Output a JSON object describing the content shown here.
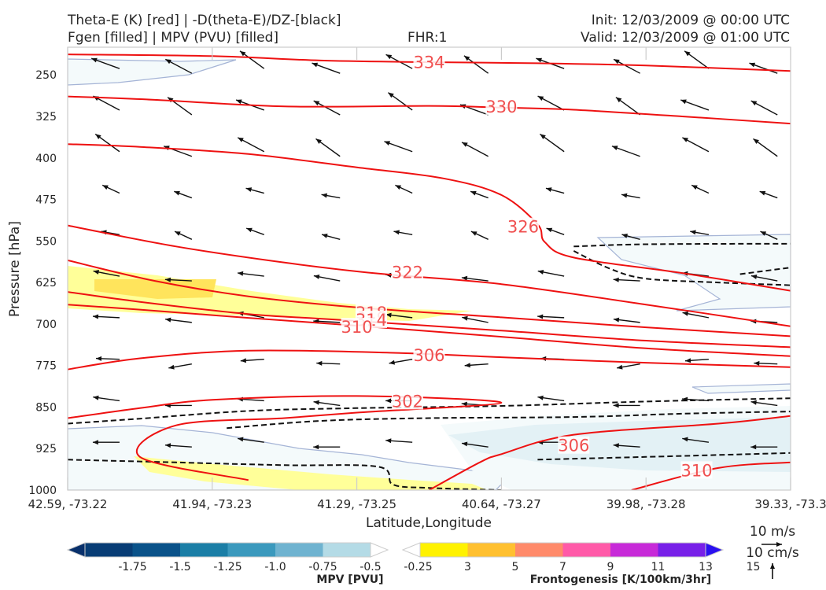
{
  "header": {
    "title_left_1": "Theta-E (K) [red] | -D(theta-E)/DZ-[black]",
    "title_left_2": "Fgen [filled] | MPV (PVU) [filled]",
    "fhr": "FHR:1",
    "init": "Init: 12/03/2009 @ 00:00 UTC",
    "valid": "Valid: 12/03/2009 @ 01:00 UTC"
  },
  "chart_data": {
    "type": "cross-section",
    "xlabel": "Latitude,Longitude",
    "ylabel": "Pressure [hPa]",
    "x_ticks": [
      "42.59, -73.22",
      "41.94, -73.23",
      "41.29, -73.25",
      "40.64, -73.27",
      "39.98, -73.28",
      "39.33, -73.3"
    ],
    "y_ticks": [
      "250",
      "325",
      "400",
      "475",
      "550",
      "625",
      "700",
      "775",
      "850",
      "925",
      "1000"
    ],
    "ylim": [
      1000,
      200
    ],
    "theta_e_contours": [
      {
        "label": "334",
        "points": [
          [
            0,
            213
          ],
          [
            0.2,
            216
          ],
          [
            0.35,
            224
          ],
          [
            0.5,
            227
          ],
          [
            0.65,
            229
          ],
          [
            0.8,
            233
          ],
          [
            1,
            243
          ]
        ]
      },
      {
        "label": "330",
        "points": [
          [
            0,
            289
          ],
          [
            0.12,
            295
          ],
          [
            0.3,
            307
          ],
          [
            0.5,
            306
          ],
          [
            0.6,
            309
          ],
          [
            0.7,
            313
          ],
          [
            0.85,
            325
          ],
          [
            1,
            338
          ]
        ]
      },
      {
        "label": "326",
        "points": [
          [
            0,
            375
          ],
          [
            0.1,
            380
          ],
          [
            0.25,
            393
          ],
          [
            0.4,
            417
          ],
          [
            0.52,
            437
          ],
          [
            0.6,
            467
          ],
          [
            0.65,
            520
          ],
          [
            0.66,
            552
          ],
          [
            0.7,
            580
          ],
          [
            0.85,
            608
          ],
          [
            1,
            640
          ]
        ]
      },
      {
        "label": "322",
        "points": [
          [
            0,
            522
          ],
          [
            0.15,
            560
          ],
          [
            0.3,
            589
          ],
          [
            0.43,
            609
          ],
          [
            0.6,
            628
          ],
          [
            0.8,
            665
          ],
          [
            1,
            704
          ]
        ]
      },
      {
        "label": "318",
        "points": [
          [
            0,
            585
          ],
          [
            0.12,
            622
          ],
          [
            0.25,
            650
          ],
          [
            0.4,
            670
          ],
          [
            0.6,
            688
          ],
          [
            0.8,
            706
          ],
          [
            1,
            722
          ]
        ]
      },
      {
        "label": "314",
        "points": [
          [
            0,
            642
          ],
          [
            0.1,
            660
          ],
          [
            0.25,
            682
          ],
          [
            0.37,
            692
          ],
          [
            0.6,
            712
          ],
          [
            0.8,
            730
          ],
          [
            1,
            742
          ]
        ]
      },
      {
        "label": "310",
        "points": [
          [
            0,
            665
          ],
          [
            0.1,
            674
          ],
          [
            0.25,
            689
          ],
          [
            0.4,
            703
          ],
          [
            0.6,
            723
          ],
          [
            0.8,
            744
          ],
          [
            1,
            758
          ]
        ]
      },
      {
        "label": "306",
        "points": [
          [
            0,
            782
          ],
          [
            0.1,
            762
          ],
          [
            0.25,
            748
          ],
          [
            0.45,
            752
          ],
          [
            0.6,
            760
          ],
          [
            0.8,
            770
          ],
          [
            1,
            778
          ]
        ]
      },
      {
        "label": "302",
        "points": [
          [
            0,
            870
          ],
          [
            0.1,
            852
          ],
          [
            0.2,
            837
          ],
          [
            0.4,
            830
          ],
          [
            0.6,
            842
          ],
          [
            0.4,
            860
          ],
          [
            0.3,
            870
          ],
          [
            0.15,
            883
          ],
          [
            0.1,
            940
          ],
          [
            0.25,
            982
          ]
        ]
      },
      {
        "label": "306",
        "points": [
          [
            0.5,
            1000
          ],
          [
            0.57,
            950
          ],
          [
            0.6,
            935
          ],
          [
            0.7,
            900
          ],
          [
            0.9,
            880
          ],
          [
            1,
            866
          ]
        ]
      },
      {
        "label": "310",
        "points": [
          [
            0.78,
            1000
          ],
          [
            0.9,
            960
          ],
          [
            1,
            950
          ]
        ]
      }
    ],
    "dthetae_dz_contours": [
      {
        "points": [
          [
            0,
            880
          ],
          [
            0.1,
            871
          ],
          [
            0.25,
            857
          ],
          [
            0.4,
            852
          ],
          [
            0.6,
            848
          ],
          [
            0.8,
            840
          ],
          [
            1,
            834
          ]
        ]
      },
      {
        "points": [
          [
            0.22,
            888
          ],
          [
            0.35,
            875
          ],
          [
            0.5,
            870
          ],
          [
            0.7,
            868
          ],
          [
            0.85,
            862
          ],
          [
            1,
            858
          ]
        ]
      },
      {
        "points": [
          [
            0,
            945
          ],
          [
            0.15,
            950
          ],
          [
            0.3,
            955
          ],
          [
            0.43,
            958
          ],
          [
            0.45,
            990
          ],
          [
            0.5,
            996
          ],
          [
            0.6,
            1000
          ]
        ]
      },
      {
        "points": [
          [
            0.7,
            560
          ],
          [
            0.8,
            556
          ],
          [
            1,
            555
          ]
        ]
      },
      {
        "points": [
          [
            0.7,
            568
          ],
          [
            0.75,
            600
          ],
          [
            0.8,
            618
          ],
          [
            0.9,
            625
          ],
          [
            1,
            630
          ]
        ]
      },
      {
        "points": [
          [
            0.93,
            610
          ],
          [
            1,
            598
          ]
        ]
      },
      {
        "points": [
          [
            0.65,
            945
          ],
          [
            0.8,
            940
          ],
          [
            1,
            933
          ]
        ]
      }
    ],
    "mpv_fill_levels": [
      -1.75,
      -1.5,
      -1.25,
      -1.0,
      -0.75,
      -0.5,
      -0.25
    ],
    "fgen_fill_levels": [
      3,
      5,
      7,
      9,
      11,
      13,
      15
    ],
    "wind_reference": {
      "value": "10 m/s"
    },
    "vertical_reference": {
      "value": "10 cm/s"
    }
  },
  "colorbars": {
    "mpv": {
      "label": "MPV [PVU]",
      "ticks": [
        "-1.75",
        "-1.5",
        "-1.25",
        "-1.0",
        "-0.75",
        "-0.5",
        "-0.25"
      ],
      "colors": [
        "#08306b",
        "#083d75",
        "#0a5289",
        "#1b7ea6",
        "#3b99bd",
        "#6fb3d0",
        "#b4dbe6",
        "#ffffff"
      ]
    },
    "fgen": {
      "label": "Frontogenesis [K/100km/3hr]",
      "ticks": [
        "3",
        "5",
        "7",
        "9",
        "11",
        "13",
        "15"
      ],
      "colors": [
        "#ffffff",
        "#fff200",
        "#ffc030",
        "#ff8a6a",
        "#ff5aa8",
        "#c72ad8",
        "#7820e8",
        "#2a10f0"
      ]
    }
  },
  "reference_vectors": {
    "wind_label": "10 m/s",
    "vertical_label": "10 cm/s"
  }
}
